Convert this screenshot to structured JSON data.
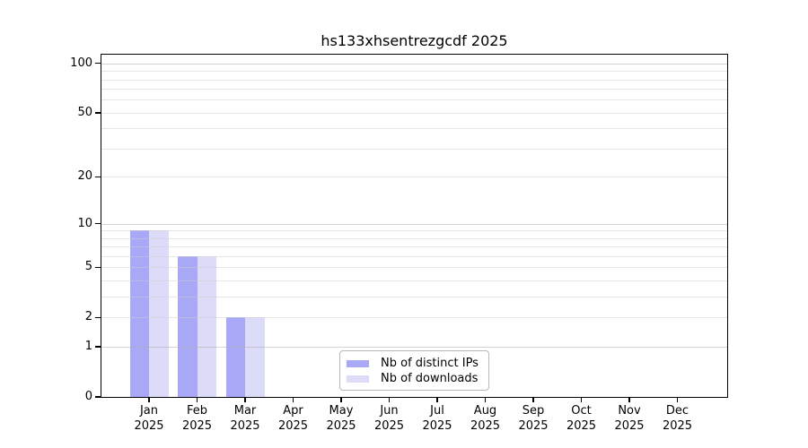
{
  "figure": {
    "background": "#ffffff"
  },
  "chart_data": {
    "type": "bar",
    "title": "hs133xhsentrezgcdf 2025",
    "categories": [
      "Jan",
      "Feb",
      "Mar",
      "Apr",
      "May",
      "Jun",
      "Jul",
      "Aug",
      "Sep",
      "Oct",
      "Nov",
      "Dec"
    ],
    "category_year": "2025",
    "series": [
      {
        "name": "Nb of distinct IPs",
        "color": "#a8a8f6",
        "values": [
          9,
          6,
          2,
          0,
          0,
          0,
          0,
          0,
          0,
          0,
          0,
          0
        ]
      },
      {
        "name": "Nb of downloads",
        "color": "#dcdcf8",
        "values": [
          9,
          6,
          2,
          0,
          0,
          0,
          0,
          0,
          0,
          0,
          0,
          0
        ]
      }
    ],
    "y_axis": {
      "scale": "log1p",
      "tick_labels": [
        "0",
        "1",
        "2",
        "5",
        "10",
        "20",
        "50",
        "100"
      ],
      "tick_values": [
        0,
        1,
        2,
        5,
        10,
        20,
        50,
        100
      ],
      "major_gridlines": [
        1,
        10,
        100
      ],
      "minor_gridlines": [
        2,
        3,
        4,
        5,
        6,
        7,
        8,
        9,
        20,
        30,
        40,
        50,
        60,
        70,
        80,
        90
      ],
      "max": 113,
      "min": 0
    },
    "legend_position": "lower center",
    "grid": "horizontal, drawn above bars"
  },
  "colors": {
    "axis": "#000000",
    "grid_major": "rgba(175,175,175,0.55)",
    "grid_minor": "rgba(205,205,205,0.5)",
    "legend_border": "#b8b8b8"
  }
}
